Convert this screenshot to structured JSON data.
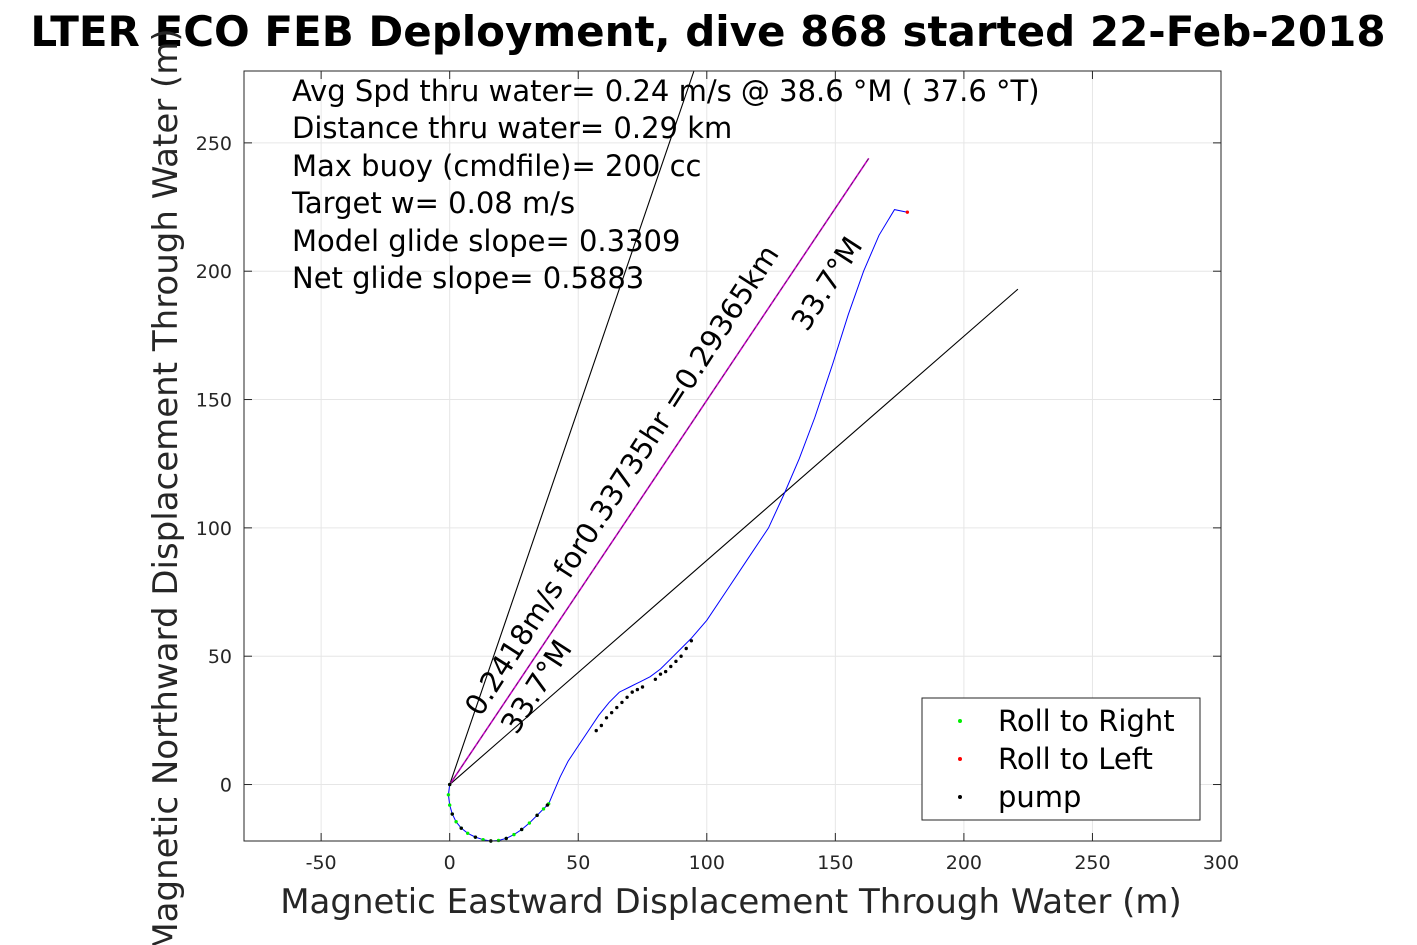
{
  "chart_data": {
    "type": "scatter",
    "title": "LTER ECO FEB Deployment, dive 868 started 22-Feb-2018",
    "xlabel": "Magnetic Eastward Displacement Through Water (m)",
    "ylabel": "Magnetic Northward Displacement Through Water (m)",
    "xlim": [
      -80,
      300
    ],
    "ylim": [
      -22,
      278
    ],
    "xticks": [
      -50,
      0,
      50,
      100,
      150,
      200,
      250,
      300
    ],
    "yticks": [
      0,
      50,
      100,
      150,
      200,
      250
    ],
    "grid": true,
    "legend_position": "bottom-right",
    "info_lines": [
      "Avg Spd thru water=  0.24 m/s @  38.6 °M ( 37.6 °T)",
      "Distance thru water=  0.29 km",
      "Max buoy (cmdfile)= 200 cc",
      "Target w= 0.08 m/s",
      "Model glide slope= 0.3309",
      "Net glide slope= 0.5883"
    ],
    "annotations": [
      {
        "text": "0.2418m/s for0.33735hr =0.29365km",
        "anchor": [
          12,
          26
        ],
        "angle_deg": 57.2
      },
      {
        "text": "33.7°M",
        "anchor": [
          26,
          19
        ],
        "angle_deg": 57.2
      },
      {
        "text": "33.7°M",
        "anchor": [
          139,
          176
        ],
        "angle_deg": 57.2
      }
    ],
    "reference_lines": [
      {
        "name": "bound-left",
        "color": "#000000",
        "x": [
          0,
          95
        ],
        "y": [
          0,
          278
        ]
      },
      {
        "name": "bound-right",
        "color": "#000000",
        "x": [
          0,
          221
        ],
        "y": [
          0,
          193
        ]
      },
      {
        "name": "heading",
        "color": "#cc00cc",
        "x": [
          0,
          163
        ],
        "y": [
          0,
          244
        ]
      },
      {
        "name": "heading-center",
        "color": "#333333",
        "x": [
          0,
          163
        ],
        "y": [
          0,
          244
        ]
      }
    ],
    "track": {
      "color": "#0000ff",
      "x": [
        0,
        -0.5,
        0,
        1,
        2.5,
        4.5,
        7,
        10,
        13,
        16,
        19,
        22,
        25,
        28,
        31,
        34,
        36.5,
        38.5,
        40,
        43,
        46,
        50,
        54,
        58,
        62,
        66,
        70,
        74,
        78,
        82,
        86,
        90,
        94,
        100,
        108,
        116,
        124,
        130,
        136,
        142,
        149,
        155,
        161,
        167,
        173,
        178
      ],
      "y": [
        0,
        -4,
        -8,
        -11.5,
        -14.5,
        -17,
        -19,
        -20.5,
        -21.5,
        -22,
        -21.8,
        -21,
        -19.5,
        -17.5,
        -15,
        -12,
        -9.5,
        -7.5,
        -4,
        3,
        9,
        15,
        21,
        27,
        32,
        36,
        38,
        40,
        42,
        45,
        49,
        53,
        57,
        64,
        76,
        88,
        100,
        113,
        127,
        143,
        164,
        183,
        200,
        214,
        224,
        223
      ]
    },
    "series": [
      {
        "name": "Roll to Right",
        "color": "#00ee00",
        "x": [
          0,
          -0.5,
          0,
          1,
          2.5,
          4.5,
          7,
          10,
          13,
          16,
          19,
          22,
          25,
          28,
          31,
          34,
          36.5,
          38.5
        ],
        "y": [
          0,
          -4,
          -8,
          -11.5,
          -14.5,
          -17,
          -19,
          -20.5,
          -21.5,
          -22,
          -21.8,
          -21,
          -19.5,
          -17.5,
          -15,
          -12,
          -9.5,
          -7.5
        ]
      },
      {
        "name": "Roll to Left",
        "color": "#ff0000",
        "x": [
          178
        ],
        "y": [
          223
        ]
      },
      {
        "name": "pump",
        "color": "#000000",
        "x": [
          0,
          1,
          4.5,
          10,
          16,
          22,
          28,
          34,
          38,
          57,
          59,
          61,
          63,
          65,
          67,
          69,
          71,
          73,
          75,
          80,
          82,
          84,
          86,
          88,
          90,
          92,
          94
        ],
        "y": [
          0,
          -11.5,
          -17,
          -20.5,
          -22,
          -21,
          -17.5,
          -12,
          -8,
          21,
          23,
          26,
          28,
          30,
          32,
          34,
          36,
          37,
          38,
          41,
          43,
          44,
          46,
          48,
          50,
          53,
          56
        ]
      }
    ]
  }
}
